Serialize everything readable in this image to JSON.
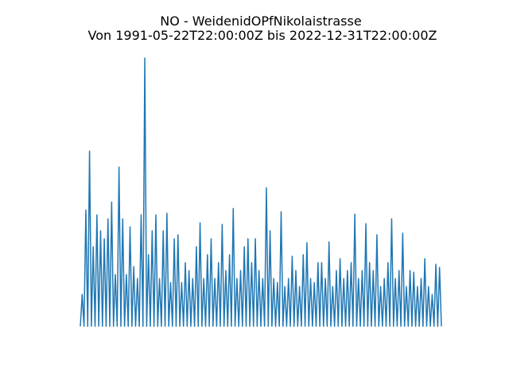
{
  "chart_data": {
    "type": "line",
    "title": "NO - WeidenidOPfNikolaistrasse",
    "subtitle": "Von 1991-05-22T22:00:00Z bis 2022-12-31T22:00:00Z",
    "color": "#1f77b4",
    "ylim": [
      -17,
      352
    ],
    "values": [
      0,
      40,
      0,
      146,
      0,
      220,
      0,
      100,
      0,
      140,
      0,
      120,
      0,
      110,
      0,
      135,
      0,
      156,
      0,
      65,
      0,
      200,
      0,
      135,
      0,
      65,
      0,
      125,
      0,
      75,
      0,
      60,
      0,
      140,
      0,
      337,
      0,
      90,
      0,
      120,
      0,
      140,
      0,
      60,
      0,
      120,
      0,
      142,
      0,
      55,
      0,
      110,
      0,
      115,
      0,
      55,
      0,
      80,
      0,
      70,
      0,
      60,
      0,
      100,
      0,
      130,
      0,
      60,
      0,
      90,
      0,
      110,
      0,
      60,
      0,
      80,
      0,
      128,
      0,
      70,
      0,
      90,
      0,
      148,
      0,
      60,
      0,
      70,
      0,
      100,
      0,
      110,
      0,
      80,
      0,
      110,
      0,
      70,
      0,
      60,
      0,
      174,
      0,
      120,
      0,
      60,
      0,
      55,
      0,
      144,
      0,
      50,
      0,
      60,
      0,
      88,
      0,
      70,
      0,
      50,
      0,
      90,
      0,
      105,
      0,
      60,
      0,
      55,
      0,
      80,
      0,
      80,
      0,
      60,
      0,
      106,
      0,
      50,
      0,
      70,
      0,
      85,
      0,
      60,
      0,
      70,
      0,
      80,
      0,
      141,
      0,
      60,
      0,
      70,
      0,
      129,
      0,
      80,
      0,
      70,
      0,
      115,
      0,
      50,
      0,
      60,
      0,
      80,
      0,
      135,
      0,
      60,
      0,
      70,
      0,
      117,
      0,
      50,
      0,
      70,
      0,
      68,
      0,
      50,
      0,
      60,
      0,
      85,
      0,
      50,
      0,
      40,
      0,
      78,
      0,
      74,
      0
    ]
  }
}
